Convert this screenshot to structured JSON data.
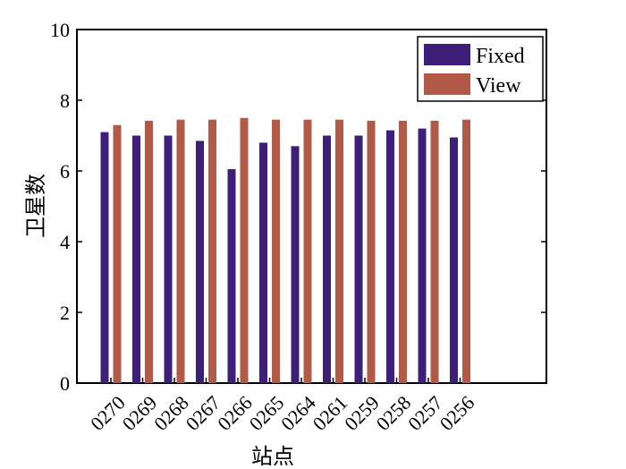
{
  "chart_data": {
    "type": "bar",
    "title": "",
    "xlabel": "站点",
    "ylabel": "卫星数",
    "categories": [
      "0270",
      "0269",
      "0268",
      "0267",
      "0266",
      "0265",
      "0264",
      "0261",
      "0259",
      "0258",
      "0257",
      "0256"
    ],
    "series": [
      {
        "name": "Fixed",
        "values": [
          7.1,
          7.0,
          7.0,
          6.85,
          6.05,
          6.8,
          6.7,
          7.0,
          7.0,
          7.15,
          7.2,
          6.95
        ]
      },
      {
        "name": "View",
        "values": [
          7.3,
          7.42,
          7.45,
          7.45,
          7.5,
          7.45,
          7.45,
          7.45,
          7.42,
          7.42,
          7.42,
          7.45
        ]
      }
    ],
    "ylim": [
      0,
      10
    ],
    "yticks": [
      "0",
      "2",
      "4",
      "6",
      "8",
      "10"
    ],
    "grid": false,
    "legend_position": "top-right",
    "colors": {
      "Fixed": "#3d1f7a",
      "View": "#b05a47"
    }
  }
}
